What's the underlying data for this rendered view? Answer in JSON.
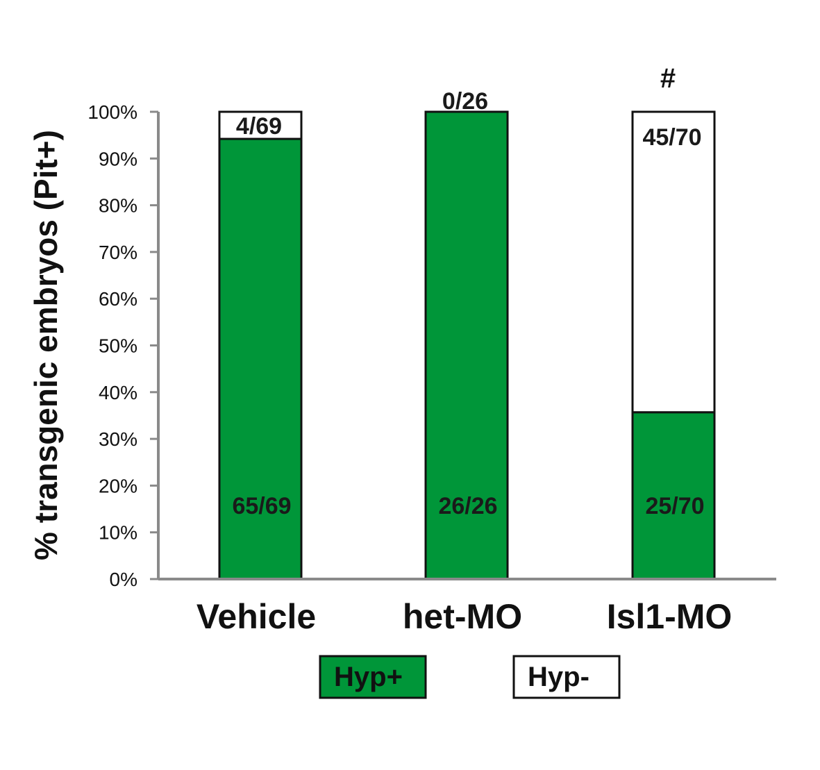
{
  "chart_data": {
    "type": "bar",
    "stacked": true,
    "ylabel": "% transgenic embryos (Pit+)",
    "ylim": [
      0,
      100
    ],
    "ytick_labels": [
      "0%",
      "10%",
      "20%",
      "30%",
      "40%",
      "50%",
      "60%",
      "70%",
      "80%",
      "90%",
      "100%"
    ],
    "categories": [
      "Vehicle",
      "het-MO",
      "Isl1-MO"
    ],
    "series": [
      {
        "name": "Hyp+",
        "color": "#009639",
        "values": [
          94.2,
          100,
          35.7
        ],
        "labels": [
          "65/69",
          "26/26",
          "25/70"
        ]
      },
      {
        "name": "Hyp-",
        "color": "#ffffff",
        "values": [
          5.8,
          0,
          64.3
        ],
        "labels": [
          "4/69",
          "0/26",
          "45/70"
        ]
      }
    ],
    "annotations": [
      "",
      "",
      "#"
    ],
    "legend_position": "bottom"
  }
}
